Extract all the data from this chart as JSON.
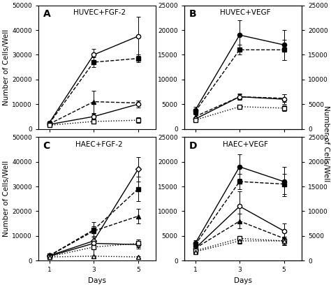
{
  "panels": {
    "A": {
      "title": "HUVEC+FGF-2",
      "label": "A",
      "ylim_left": [
        0,
        50000
      ],
      "yticks_left": [
        0,
        10000,
        20000,
        30000,
        40000,
        50000
      ],
      "show_right_axis": false,
      "series": [
        {
          "days": [
            1,
            3,
            5
          ],
          "values": [
            2500,
            30000,
            37500
          ],
          "errors": [
            500,
            2500,
            8000
          ],
          "marker": "o",
          "fillstyle": "none",
          "linestyle": "-"
        },
        {
          "days": [
            1,
            3,
            5
          ],
          "values": [
            2200,
            27000,
            28500
          ],
          "errors": [
            400,
            2000,
            1500
          ],
          "marker": "s",
          "fillstyle": "full",
          "linestyle": "--"
        },
        {
          "days": [
            1,
            3,
            5
          ],
          "values": [
            2000,
            11000,
            10500
          ],
          "errors": [
            400,
            4500,
            1000
          ],
          "marker": "^",
          "fillstyle": "full",
          "linestyle": "--"
        },
        {
          "days": [
            1,
            3,
            5
          ],
          "values": [
            1800,
            5000,
            10000
          ],
          "errors": [
            300,
            1000,
            1500
          ],
          "marker": "o",
          "fillstyle": "none",
          "linestyle": "-"
        },
        {
          "days": [
            1,
            3,
            5
          ],
          "values": [
            1500,
            3000,
            3500
          ],
          "errors": [
            200,
            400,
            1200
          ],
          "marker": "s",
          "fillstyle": "none",
          "linestyle": ":"
        }
      ]
    },
    "B": {
      "title": "HUVEC+VEGF",
      "label": "B",
      "ylim_left": [
        0,
        25000
      ],
      "yticks_left": [
        0,
        5000,
        10000,
        15000,
        20000,
        25000
      ],
      "show_right_axis": true,
      "series": [
        {
          "days": [
            1,
            3,
            5
          ],
          "values": [
            3800,
            19000,
            17000
          ],
          "errors": [
            600,
            3000,
            3000
          ],
          "marker": "o",
          "fillstyle": "full",
          "linestyle": "-"
        },
        {
          "days": [
            1,
            3,
            5
          ],
          "values": [
            3500,
            16000,
            16000
          ],
          "errors": [
            500,
            1000,
            2000
          ],
          "marker": "s",
          "fillstyle": "full",
          "linestyle": "--"
        },
        {
          "days": [
            1,
            3,
            5
          ],
          "values": [
            2500,
            6500,
            6200
          ],
          "errors": [
            400,
            500,
            800
          ],
          "marker": "^",
          "fillstyle": "full",
          "linestyle": "--"
        },
        {
          "days": [
            1,
            3,
            5
          ],
          "values": [
            2000,
            6500,
            6000
          ],
          "errors": [
            350,
            600,
            1000
          ],
          "marker": "o",
          "fillstyle": "none",
          "linestyle": "-"
        },
        {
          "days": [
            1,
            3,
            5
          ],
          "values": [
            1800,
            4500,
            4200
          ],
          "errors": [
            300,
            400,
            600
          ],
          "marker": "s",
          "fillstyle": "none",
          "linestyle": ":"
        }
      ]
    },
    "C": {
      "title": "HAEC+FGF-2",
      "label": "C",
      "ylim_left": [
        0,
        50000
      ],
      "yticks_left": [
        0,
        10000,
        20000,
        30000,
        40000,
        50000
      ],
      "show_right_axis": false,
      "series": [
        {
          "days": [
            1,
            3,
            5
          ],
          "values": [
            2000,
            8000,
            37000
          ],
          "errors": [
            300,
            3000,
            5000
          ],
          "marker": "D",
          "fillstyle": "none",
          "linestyle": "-"
        },
        {
          "days": [
            1,
            3,
            5
          ],
          "values": [
            2000,
            12500,
            29000
          ],
          "errors": [
            300,
            3000,
            5000
          ],
          "marker": "s",
          "fillstyle": "full",
          "linestyle": "--"
        },
        {
          "days": [
            1,
            3,
            5
          ],
          "values": [
            2000,
            12000,
            18000
          ],
          "errors": [
            300,
            2000,
            3000
          ],
          "marker": "^",
          "fillstyle": "full",
          "linestyle": "--"
        },
        {
          "days": [
            1,
            3,
            5
          ],
          "values": [
            1800,
            7000,
            6500
          ],
          "errors": [
            300,
            6000,
            1500
          ],
          "marker": "o",
          "fillstyle": "none",
          "linestyle": "-"
        },
        {
          "days": [
            1,
            3,
            5
          ],
          "values": [
            1600,
            5500,
            7000
          ],
          "errors": [
            300,
            1000,
            1500
          ],
          "marker": "s",
          "fillstyle": "none",
          "linestyle": ":"
        },
        {
          "days": [
            1,
            3,
            5
          ],
          "values": [
            1500,
            1800,
            1500
          ],
          "errors": [
            200,
            300,
            200
          ],
          "marker": "^",
          "fillstyle": "none",
          "linestyle": ":"
        }
      ]
    },
    "D": {
      "title": "HAEC+VEGF",
      "label": "D",
      "ylim_left": [
        0,
        25000
      ],
      "yticks_left": [
        0,
        5000,
        10000,
        15000,
        20000,
        25000
      ],
      "show_right_axis": true,
      "series": [
        {
          "days": [
            1,
            3,
            5
          ],
          "values": [
            3500,
            19000,
            16000
          ],
          "errors": [
            600,
            2500,
            3000
          ],
          "marker": "o",
          "fillstyle": "full",
          "linestyle": "-"
        },
        {
          "days": [
            1,
            3,
            5
          ],
          "values": [
            3200,
            16000,
            15500
          ],
          "errors": [
            500,
            1500,
            2000
          ],
          "marker": "s",
          "fillstyle": "full",
          "linestyle": "--"
        },
        {
          "days": [
            1,
            3,
            5
          ],
          "values": [
            2500,
            11000,
            6000
          ],
          "errors": [
            400,
            3000,
            1500
          ],
          "marker": "o",
          "fillstyle": "none",
          "linestyle": "-"
        },
        {
          "days": [
            1,
            3,
            5
          ],
          "values": [
            2500,
            8000,
            4500
          ],
          "errors": [
            400,
            1500,
            1200
          ],
          "marker": "^",
          "fillstyle": "full",
          "linestyle": "--"
        },
        {
          "days": [
            1,
            3,
            5
          ],
          "values": [
            2000,
            4500,
            4000
          ],
          "errors": [
            300,
            500,
            800
          ],
          "marker": "s",
          "fillstyle": "none",
          "linestyle": ":"
        },
        {
          "days": [
            1,
            3,
            5
          ],
          "values": [
            1800,
            4000,
            4000
          ],
          "errors": [
            300,
            600,
            800
          ],
          "marker": "^",
          "fillstyle": "none",
          "linestyle": ":"
        }
      ]
    }
  },
  "xlabel": "Days",
  "ylabel_left": "Number of Cells/Well",
  "ylabel_right": "Number of Cells/Well",
  "xticks": [
    1,
    3,
    5
  ],
  "background_color": "#ffffff",
  "linewidth": 1.0,
  "markersize": 4.5,
  "tick_labelsize": 6.5,
  "title_fontsize": 7.5,
  "label_fontsize": 10,
  "axis_labelsize": 7.5
}
